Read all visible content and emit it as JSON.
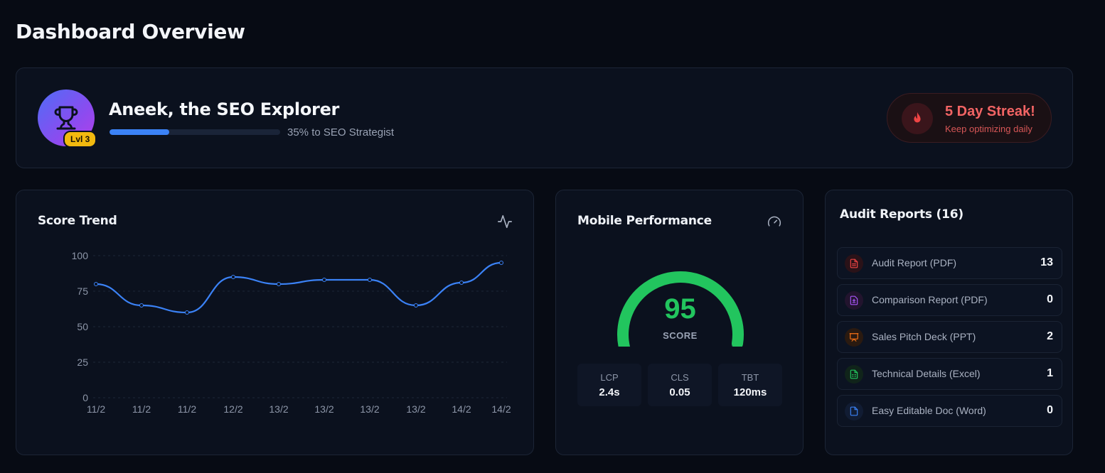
{
  "page": {
    "title": "Dashboard Overview"
  },
  "profile": {
    "name": "Aneek, the SEO Explorer",
    "level": "Lvl 3",
    "progress_label": "35% to SEO Strategist",
    "progress_fraction": 0.35,
    "avatar_icon": "trophy-icon",
    "streak": {
      "title": "5 Day Streak!",
      "subtitle": "Keep optimizing daily",
      "icon": "flame-icon"
    }
  },
  "score_trend": {
    "title": "Score Trend",
    "icon": "activity-icon",
    "chart_data": {
      "type": "line",
      "categories": [
        "11/2",
        "11/2",
        "11/2",
        "12/2",
        "13/2",
        "13/2",
        "13/2",
        "13/2",
        "14/2",
        "14/2"
      ],
      "values": [
        80,
        65,
        60,
        85,
        80,
        83,
        83,
        65,
        81,
        95
      ],
      "ylim": [
        0,
        100
      ],
      "yticks": [
        "0",
        "25",
        "50",
        "75",
        "100"
      ],
      "grid": true,
      "line_color": "#3b82f6"
    }
  },
  "mobile_performance": {
    "title": "Mobile Performance",
    "icon": "gauge-icon",
    "score": "95",
    "score_value": 95,
    "score_label": "SCORE",
    "score_color": "#22c55e",
    "metrics": [
      {
        "label": "LCP",
        "value": "2.4s"
      },
      {
        "label": "CLS",
        "value": "0.05"
      },
      {
        "label": "TBT",
        "value": "120ms"
      }
    ]
  },
  "audit_reports": {
    "title": "Audit Reports (16)",
    "items": [
      {
        "label": "Audit Report (PDF)",
        "count": "13",
        "icon": "pdf-file-icon",
        "color": "#ef4444"
      },
      {
        "label": "Comparison Report (PDF)",
        "count": "0",
        "icon": "diff-file-icon",
        "color": "#a855f7"
      },
      {
        "label": "Sales Pitch Deck (PPT)",
        "count": "2",
        "icon": "presentation-icon",
        "color": "#f97316"
      },
      {
        "label": "Technical Details (Excel)",
        "count": "1",
        "icon": "spreadsheet-icon",
        "color": "#22c55e"
      },
      {
        "label": "Easy Editable Doc (Word)",
        "count": "0",
        "icon": "document-icon",
        "color": "#3b82f6"
      }
    ]
  }
}
